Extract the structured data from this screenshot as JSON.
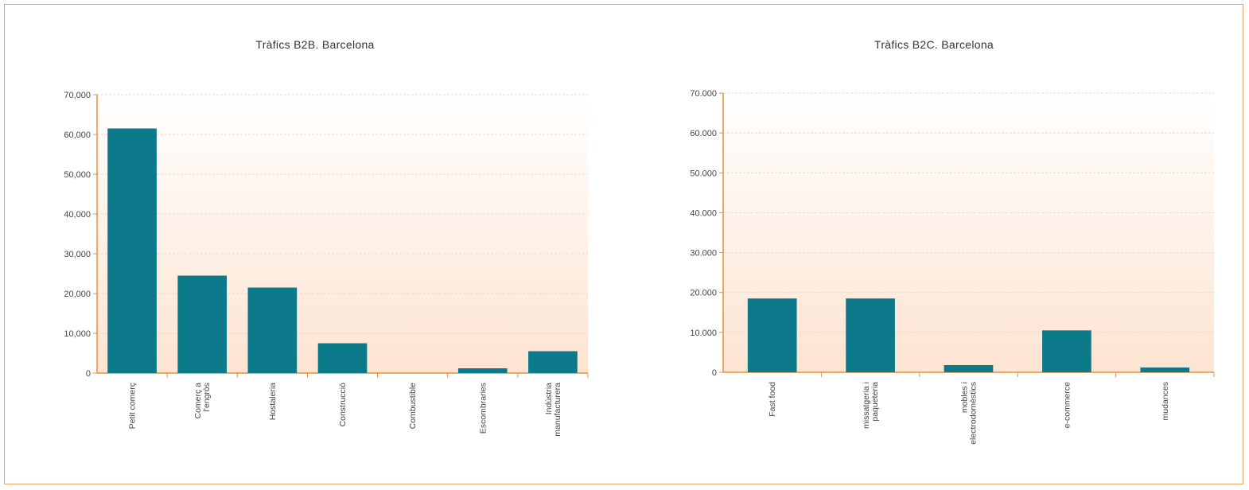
{
  "colors": {
    "bar": "#0d7a8c",
    "axis": "#e8913c",
    "grid": "#f1d9c4",
    "plot_bg_top": "#ffffff",
    "plot_bg_bottom": "#fde4d2",
    "frame": "#e9a46a"
  },
  "chart_data": [
    {
      "type": "bar",
      "title": "Tràfics B2B. Barcelona",
      "categories": [
        "Petit comerç",
        [
          "Comerç a",
          "l'engròs"
        ],
        "Hostaleria",
        "Construcció",
        "Combustible",
        "Escombraries",
        [
          "Indústria",
          "manufacturera"
        ]
      ],
      "values": [
        61500,
        24500,
        21500,
        7500,
        0,
        1200,
        5500
      ],
      "ylim": [
        0,
        70000
      ],
      "yticks": [
        0,
        10000,
        20000,
        30000,
        40000,
        50000,
        60000,
        70000
      ],
      "ytick_labels": [
        "0",
        "10,000",
        "20,000",
        "30,000",
        "40,000",
        "50,000",
        "60,000",
        "70,000"
      ],
      "xlabel": "",
      "ylabel": "",
      "grid": true
    },
    {
      "type": "bar",
      "title": "Tràfics B2C. Barcelona",
      "categories": [
        "Fast food",
        [
          "missatgeria i",
          "paqueteria"
        ],
        [
          "mobles i",
          "electrodomèstics"
        ],
        "e-commerce",
        "mudances"
      ],
      "values": [
        18500,
        18500,
        1800,
        10500,
        1200
      ],
      "ylim": [
        0,
        70000
      ],
      "yticks": [
        0,
        10000,
        20000,
        30000,
        40000,
        50000,
        60000,
        70000
      ],
      "ytick_labels": [
        "0",
        "10.000",
        "20.000",
        "30.000",
        "40.000",
        "50.000",
        "60.000",
        "70.000"
      ],
      "xlabel": "",
      "ylabel": "",
      "grid": true
    }
  ]
}
